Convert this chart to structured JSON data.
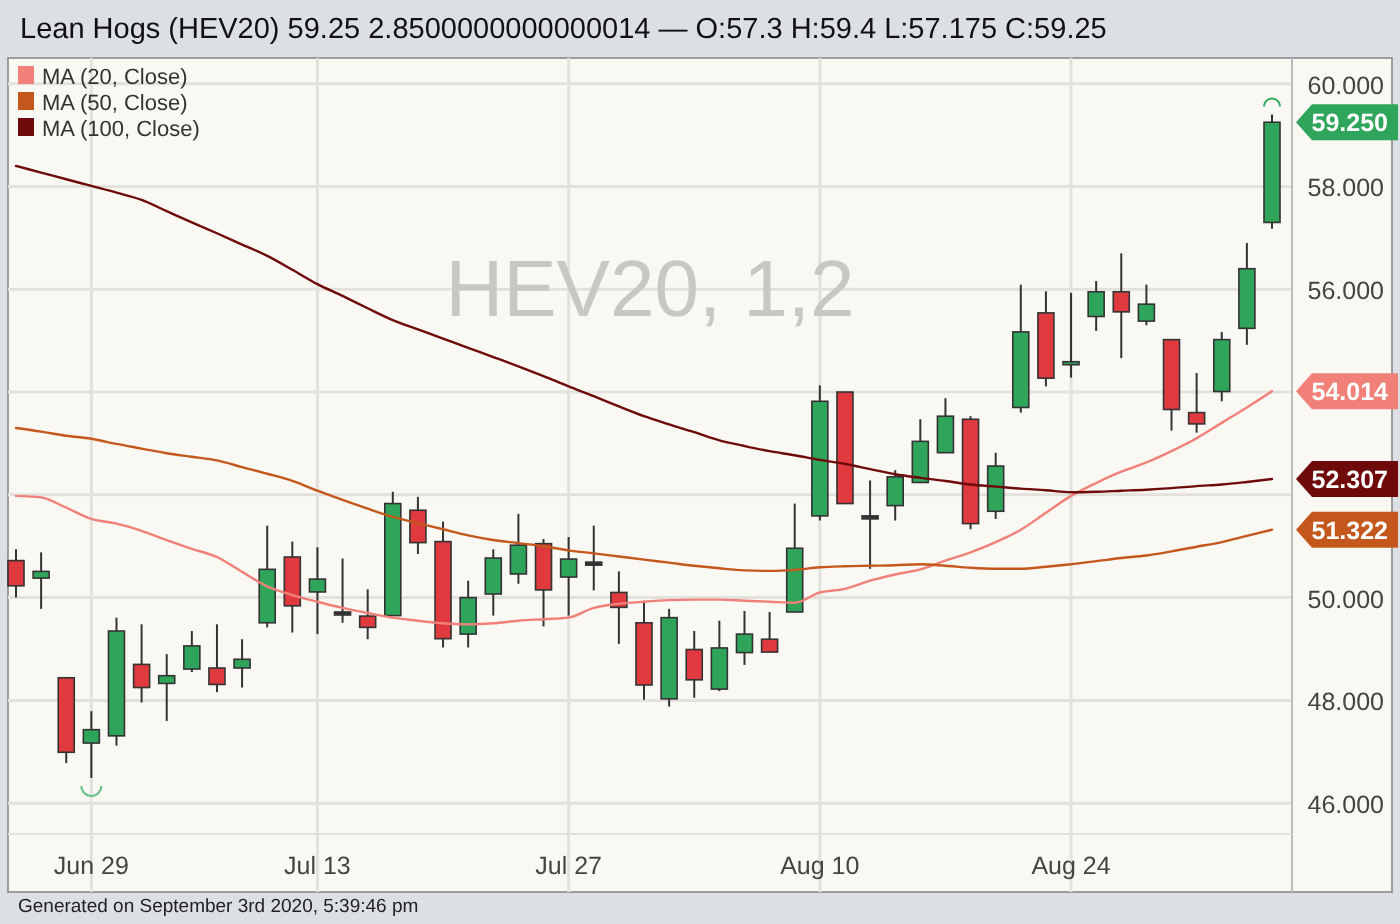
{
  "chart_data": {
    "type": "candlestick",
    "title": "Lean Hogs (HEV20) 59.25 2.8500000000000014 — O:57.3 H:59.4 L:57.175 C:59.25",
    "categories": [
      null,
      null,
      null,
      "Jun 29",
      null,
      null,
      null,
      null,
      null,
      null,
      null,
      null,
      "Jul 13",
      null,
      null,
      null,
      null,
      null,
      null,
      null,
      null,
      null,
      "Jul 27",
      null,
      null,
      null,
      null,
      null,
      null,
      null,
      null,
      null,
      "Aug 10",
      null,
      null,
      null,
      null,
      null,
      null,
      null,
      null,
      null,
      "Aug 24",
      null,
      null,
      null,
      null,
      null,
      null,
      null,
      null
    ],
    "ohlc": [
      [
        50.72,
        50.94,
        50.0,
        50.23
      ],
      [
        50.38,
        50.88,
        49.78,
        50.51
      ],
      [
        48.44,
        48.44,
        46.78,
        46.99
      ],
      [
        47.17,
        47.79,
        46.49,
        47.43
      ],
      [
        47.31,
        49.61,
        47.12,
        49.35
      ],
      [
        48.7,
        49.48,
        47.96,
        48.25
      ],
      [
        48.33,
        48.9,
        47.6,
        48.48
      ],
      [
        48.61,
        49.35,
        48.55,
        49.06
      ],
      [
        48.63,
        49.48,
        48.16,
        48.31
      ],
      [
        48.63,
        49.19,
        48.25,
        48.8
      ],
      [
        49.51,
        51.4,
        49.42,
        50.55
      ],
      [
        50.79,
        51.09,
        49.32,
        49.84
      ],
      [
        50.11,
        50.98,
        49.29,
        50.36
      ],
      [
        49.72,
        50.76,
        49.51,
        49.72
      ],
      [
        49.64,
        50.16,
        49.19,
        49.42
      ],
      [
        49.65,
        52.06,
        49.65,
        51.83
      ],
      [
        51.7,
        51.96,
        50.85,
        51.07
      ],
      [
        51.09,
        51.48,
        49.03,
        49.2
      ],
      [
        49.29,
        50.33,
        49.03,
        50.0
      ],
      [
        50.07,
        50.94,
        49.65,
        50.77
      ],
      [
        50.46,
        51.63,
        50.27,
        51.02
      ],
      [
        51.05,
        51.14,
        49.44,
        50.15
      ],
      [
        50.4,
        51.18,
        49.65,
        50.75
      ],
      [
        50.69,
        51.4,
        50.14,
        50.69
      ],
      [
        50.1,
        50.51,
        49.1,
        49.81
      ],
      [
        49.51,
        49.94,
        48.01,
        48.3
      ],
      [
        48.03,
        49.78,
        47.88,
        49.61
      ],
      [
        48.99,
        49.35,
        48.05,
        48.4
      ],
      [
        48.22,
        49.55,
        48.18,
        49.02
      ],
      [
        48.93,
        49.74,
        48.69,
        49.29
      ],
      [
        49.19,
        49.72,
        48.94,
        48.94
      ],
      [
        49.72,
        51.83,
        49.72,
        50.96
      ],
      [
        51.59,
        54.13,
        51.5,
        53.82
      ],
      [
        54.0,
        54.0,
        51.83,
        51.83
      ],
      [
        51.59,
        52.28,
        50.56,
        51.59
      ],
      [
        51.79,
        52.48,
        51.5,
        52.35
      ],
      [
        52.24,
        53.47,
        52.24,
        53.04
      ],
      [
        52.82,
        53.88,
        52.82,
        53.53
      ],
      [
        53.47,
        53.53,
        51.33,
        51.44
      ],
      [
        51.68,
        52.82,
        51.53,
        52.56
      ],
      [
        53.7,
        56.09,
        53.6,
        55.17
      ],
      [
        55.54,
        55.96,
        54.11,
        54.27
      ],
      [
        54.56,
        55.93,
        54.28,
        54.59
      ],
      [
        55.47,
        56.16,
        55.19,
        55.95
      ],
      [
        55.95,
        56.7,
        54.66,
        55.56
      ],
      [
        55.38,
        56.09,
        55.3,
        55.71
      ],
      [
        55.02,
        55.02,
        53.25,
        53.66
      ],
      [
        53.6,
        54.37,
        53.21,
        53.38
      ],
      [
        54.01,
        55.17,
        53.82,
        55.02
      ],
      [
        55.24,
        56.9,
        54.92,
        56.4
      ],
      [
        57.3,
        59.4,
        57.175,
        59.25
      ]
    ],
    "colors": [
      "#e0393e",
      "#2ea55a",
      "#e0393e",
      "#2ea55a",
      "#2ea55a",
      "#e0393e",
      "#2ea55a",
      "#2ea55a",
      "#e0393e",
      "#2ea55a",
      "#2ea55a",
      "#e0393e",
      "#2ea55a",
      "#333333",
      "#e0393e",
      "#2ea55a",
      "#e0393e",
      "#e0393e",
      "#2ea55a",
      "#2ea55a",
      "#2ea55a",
      "#e0393e",
      "#2ea55a",
      "#333333",
      "#e0393e",
      "#e0393e",
      "#2ea55a",
      "#e0393e",
      "#2ea55a",
      "#2ea55a",
      "#e0393e",
      "#2ea55a",
      "#2ea55a",
      "#e0393e",
      "#333333",
      "#2ea55a",
      "#2ea55a",
      "#2ea55a",
      "#e0393e",
      "#2ea55a",
      "#2ea55a",
      "#e0393e",
      "#2ea55a",
      "#2ea55a",
      "#e0393e",
      "#2ea55a",
      "#e0393e",
      "#e0393e",
      "#2ea55a",
      "#2ea55a",
      "#2ea55a"
    ],
    "series": [
      {
        "name": "MA (20, Close)",
        "type": "line",
        "color": "#f08078",
        "values": [
          51.98,
          51.95,
          51.75,
          51.53,
          51.44,
          51.3,
          51.12,
          50.95,
          50.79,
          50.5,
          50.22,
          50.05,
          49.92,
          49.8,
          49.7,
          49.61,
          49.55,
          49.5,
          49.48,
          49.5,
          49.55,
          49.58,
          49.61,
          49.8,
          49.88,
          49.92,
          49.95,
          49.96,
          49.96,
          49.94,
          49.92,
          49.9,
          50.1,
          50.17,
          50.33,
          50.45,
          50.55,
          50.72,
          50.88,
          51.08,
          51.32,
          51.65,
          51.98,
          52.23,
          52.45,
          52.63,
          52.85,
          53.1,
          53.4,
          53.7,
          54.014
        ],
        "value_labels": [
          null,
          null,
          null,
          null,
          null,
          null,
          null,
          null,
          null,
          null,
          null,
          null,
          null,
          null,
          null,
          null,
          null,
          null,
          null,
          null,
          null,
          null,
          null,
          null,
          null,
          null,
          null,
          null,
          null,
          null,
          null,
          null,
          null,
          null,
          null,
          null,
          null,
          null,
          null,
          null,
          null,
          null,
          null,
          null,
          null,
          null,
          null,
          null,
          null,
          null,
          "54.014"
        ]
      },
      {
        "name": "MA (50, Close)",
        "type": "line",
        "color": "#c4581c",
        "values": [
          53.3,
          53.23,
          53.15,
          53.09,
          52.99,
          52.9,
          52.81,
          52.74,
          52.67,
          52.54,
          52.41,
          52.27,
          52.08,
          51.9,
          51.73,
          51.57,
          51.45,
          51.33,
          51.21,
          51.12,
          51.06,
          51.0,
          50.92,
          50.86,
          50.8,
          50.74,
          50.68,
          50.62,
          50.57,
          50.53,
          50.52,
          50.54,
          50.59,
          50.61,
          50.62,
          50.63,
          50.65,
          50.62,
          50.58,
          50.56,
          50.56,
          50.6,
          50.65,
          50.71,
          50.77,
          50.82,
          50.9,
          50.99,
          51.08,
          51.2,
          51.322
        ],
        "value_labels": [
          null,
          null,
          null,
          null,
          null,
          null,
          null,
          null,
          null,
          null,
          null,
          null,
          null,
          null,
          null,
          null,
          null,
          null,
          null,
          null,
          null,
          null,
          null,
          null,
          null,
          null,
          null,
          null,
          null,
          null,
          null,
          null,
          null,
          null,
          null,
          null,
          null,
          null,
          null,
          null,
          null,
          null,
          null,
          null,
          null,
          null,
          null,
          null,
          null,
          null,
          "51.322"
        ]
      },
      {
        "name": "MA (100, Close)",
        "type": "line",
        "color": "#6e0a0a",
        "values": [
          58.4,
          58.27,
          58.14,
          58.01,
          57.88,
          57.74,
          57.52,
          57.3,
          57.09,
          56.87,
          56.65,
          56.38,
          56.1,
          55.87,
          55.63,
          55.4,
          55.22,
          55.04,
          54.86,
          54.68,
          54.5,
          54.31,
          54.11,
          53.92,
          53.72,
          53.53,
          53.37,
          53.22,
          53.06,
          52.95,
          52.85,
          52.77,
          52.68,
          52.6,
          52.5,
          52.4,
          52.33,
          52.27,
          52.2,
          52.16,
          52.12,
          52.09,
          52.05,
          52.06,
          52.08,
          52.1,
          52.13,
          52.17,
          52.2,
          52.25,
          52.307
        ],
        "value_labels": [
          null,
          null,
          null,
          null,
          null,
          null,
          null,
          null,
          null,
          null,
          null,
          null,
          null,
          null,
          null,
          null,
          null,
          null,
          null,
          null,
          null,
          null,
          null,
          null,
          null,
          null,
          null,
          null,
          null,
          null,
          null,
          null,
          null,
          null,
          null,
          null,
          null,
          null,
          null,
          null,
          null,
          null,
          null,
          null,
          null,
          null,
          null,
          null,
          null,
          null,
          "52.307"
        ]
      }
    ],
    "value_labels": [
      null,
      null,
      null,
      null,
      null,
      null,
      null,
      null,
      null,
      null,
      null,
      null,
      null,
      null,
      null,
      null,
      null,
      null,
      null,
      null,
      null,
      null,
      null,
      null,
      null,
      null,
      null,
      null,
      null,
      null,
      null,
      null,
      null,
      null,
      null,
      null,
      null,
      null,
      null,
      null,
      null,
      null,
      null,
      null,
      null,
      null,
      null,
      null,
      null,
      null,
      "59.250"
    ],
    "ylim": [
      45.4,
      60.5
    ],
    "yticks": [
      {
        "value": 46,
        "label": "46.000"
      },
      {
        "value": 48,
        "label": "48.000"
      },
      {
        "value": 50,
        "label": "50.000"
      },
      {
        "value": 52,
        "label": null
      },
      {
        "value": 54,
        "label": null
      },
      {
        "value": 56,
        "label": "56.000"
      },
      {
        "value": 58,
        "label": "58.000"
      },
      {
        "value": 60,
        "label": "60.000"
      }
    ],
    "grid": true,
    "legend": "top left",
    "annotations": [
      "HEV20, 1,2",
      "Generated on September 3rd 2020, 5:39:46 pm"
    ]
  }
}
